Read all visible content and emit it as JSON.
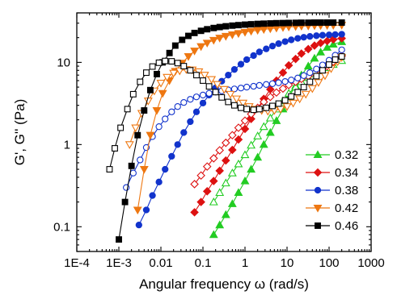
{
  "chart_data": {
    "type": "scatter",
    "xlabel": "Angular frequency ω (rad/s)",
    "ylabel": "G', G'' (Pa)",
    "xscale": "log",
    "yscale": "log",
    "xlim": [
      0.0001,
      1000
    ],
    "ylim": [
      0.05,
      40
    ],
    "xticks": [
      {
        "value": 0.0001,
        "label": "1E-4"
      },
      {
        "value": 0.001,
        "label": "1E-3"
      },
      {
        "value": 0.01,
        "label": "0.01"
      },
      {
        "value": 0.1,
        "label": "0.1"
      },
      {
        "value": 1,
        "label": "1"
      },
      {
        "value": 10,
        "label": "10"
      },
      {
        "value": 100,
        "label": "100"
      },
      {
        "value": 1000,
        "label": "1000"
      }
    ],
    "yticks": [
      {
        "value": 0.1,
        "label": "0.1"
      },
      {
        "value": 1,
        "label": "1"
      },
      {
        "value": 10,
        "label": "10"
      }
    ],
    "legend_position": "bottom-right",
    "grid": false,
    "series": [
      {
        "name": "0.32",
        "color": "#22cc22",
        "marker": "triangle-up",
        "gprime": [
          [
            0.18,
            0.08
          ],
          [
            0.25,
            0.105
          ],
          [
            0.35,
            0.14
          ],
          [
            0.5,
            0.19
          ],
          [
            0.7,
            0.26
          ],
          [
            1.0,
            0.36
          ],
          [
            1.4,
            0.5
          ],
          [
            2.0,
            0.7
          ],
          [
            2.8,
            1.0
          ],
          [
            4.0,
            1.4
          ],
          [
            5.6,
            1.95
          ],
          [
            8.0,
            2.7
          ],
          [
            11,
            3.8
          ],
          [
            16,
            5.2
          ],
          [
            22,
            7.0
          ],
          [
            32,
            9.0
          ],
          [
            45,
            11.2
          ],
          [
            63,
            13.3
          ],
          [
            90,
            15.2
          ],
          [
            126,
            16.6
          ],
          [
            200,
            17.8
          ]
        ],
        "gdoubleprime": [
          [
            0.18,
            0.2
          ],
          [
            0.25,
            0.26
          ],
          [
            0.35,
            0.34
          ],
          [
            0.5,
            0.45
          ],
          [
            0.7,
            0.58
          ],
          [
            1.0,
            0.75
          ],
          [
            1.4,
            0.98
          ],
          [
            2.0,
            1.27
          ],
          [
            2.8,
            1.65
          ],
          [
            4.0,
            2.1
          ],
          [
            5.6,
            2.7
          ],
          [
            8.0,
            3.4
          ],
          [
            11,
            4.2
          ],
          [
            16,
            5.0
          ],
          [
            22,
            5.8
          ],
          [
            32,
            6.5
          ],
          [
            45,
            7.2
          ],
          [
            63,
            7.9
          ],
          [
            90,
            8.6
          ],
          [
            126,
            9.4
          ],
          [
            200,
            10.5
          ]
        ]
      },
      {
        "name": "0.34",
        "color": "#dd1111",
        "marker": "diamond",
        "gprime": [
          [
            0.063,
            0.15
          ],
          [
            0.09,
            0.2
          ],
          [
            0.126,
            0.27
          ],
          [
            0.18,
            0.36
          ],
          [
            0.25,
            0.48
          ],
          [
            0.35,
            0.64
          ],
          [
            0.5,
            0.86
          ],
          [
            0.7,
            1.15
          ],
          [
            1.0,
            1.55
          ],
          [
            1.4,
            2.05
          ],
          [
            2.0,
            2.75
          ],
          [
            2.8,
            3.6
          ],
          [
            4.0,
            4.7
          ],
          [
            5.6,
            6.0
          ],
          [
            8.0,
            7.5
          ],
          [
            11,
            9.2
          ],
          [
            16,
            11.0
          ],
          [
            22,
            12.8
          ],
          [
            32,
            14.5
          ],
          [
            45,
            16.0
          ],
          [
            63,
            17.2
          ],
          [
            90,
            18.2
          ],
          [
            126,
            19.0
          ],
          [
            200,
            19.6
          ]
        ],
        "gdoubleprime": [
          [
            0.063,
            0.33
          ],
          [
            0.09,
            0.42
          ],
          [
            0.126,
            0.54
          ],
          [
            0.18,
            0.68
          ],
          [
            0.25,
            0.85
          ],
          [
            0.35,
            1.05
          ],
          [
            0.5,
            1.3
          ],
          [
            0.7,
            1.6
          ],
          [
            1.0,
            1.95
          ],
          [
            1.4,
            2.35
          ],
          [
            2.0,
            2.8
          ],
          [
            2.8,
            3.3
          ],
          [
            4.0,
            3.8
          ],
          [
            5.6,
            4.3
          ],
          [
            8.0,
            4.8
          ],
          [
            11,
            5.3
          ],
          [
            16,
            5.8
          ],
          [
            22,
            6.3
          ],
          [
            32,
            6.8
          ],
          [
            45,
            7.4
          ],
          [
            63,
            8.1
          ],
          [
            90,
            9.0
          ],
          [
            126,
            10.2
          ],
          [
            200,
            12.0
          ]
        ]
      },
      {
        "name": "0.38",
        "color": "#1133cc",
        "marker": "circle",
        "gprime": [
          [
            0.003,
            0.105
          ],
          [
            0.0045,
            0.16
          ],
          [
            0.0063,
            0.24
          ],
          [
            0.009,
            0.35
          ],
          [
            0.0126,
            0.5
          ],
          [
            0.018,
            0.72
          ],
          [
            0.025,
            1.0
          ],
          [
            0.035,
            1.4
          ],
          [
            0.05,
            1.9
          ],
          [
            0.07,
            2.5
          ],
          [
            0.1,
            3.2
          ],
          [
            0.14,
            4.0
          ],
          [
            0.2,
            4.9
          ],
          [
            0.28,
            5.9
          ],
          [
            0.4,
            7.0
          ],
          [
            0.56,
            8.2
          ],
          [
            0.8,
            9.5
          ],
          [
            1.1,
            10.8
          ],
          [
            1.6,
            12.1
          ],
          [
            2.2,
            13.4
          ],
          [
            3.2,
            14.6
          ],
          [
            4.5,
            15.8
          ],
          [
            6.3,
            16.9
          ],
          [
            9.0,
            17.9
          ],
          [
            12.6,
            18.8
          ],
          [
            18,
            19.6
          ],
          [
            25,
            20.2
          ],
          [
            35,
            20.7
          ],
          [
            50,
            21.1
          ],
          [
            70,
            21.4
          ],
          [
            100,
            21.6
          ],
          [
            140,
            21.8
          ],
          [
            200,
            22.0
          ]
        ],
        "gdoubleprime": [
          [
            0.0015,
            0.3
          ],
          [
            0.0022,
            0.45
          ],
          [
            0.0032,
            0.65
          ],
          [
            0.0045,
            0.92
          ],
          [
            0.0063,
            1.25
          ],
          [
            0.009,
            1.65
          ],
          [
            0.0126,
            2.05
          ],
          [
            0.018,
            2.5
          ],
          [
            0.025,
            2.9
          ],
          [
            0.035,
            3.25
          ],
          [
            0.05,
            3.55
          ],
          [
            0.07,
            3.8
          ],
          [
            0.1,
            4.0
          ],
          [
            0.14,
            4.2
          ],
          [
            0.2,
            4.35
          ],
          [
            0.28,
            4.5
          ],
          [
            0.4,
            4.62
          ],
          [
            0.56,
            4.75
          ],
          [
            0.8,
            4.87
          ],
          [
            1.1,
            5.0
          ],
          [
            1.6,
            5.12
          ],
          [
            2.2,
            5.25
          ],
          [
            3.2,
            5.38
          ],
          [
            4.5,
            5.5
          ],
          [
            6.3,
            5.65
          ],
          [
            9.0,
            5.85
          ],
          [
            12.6,
            6.1
          ],
          [
            18,
            6.45
          ],
          [
            25,
            6.9
          ],
          [
            35,
            7.5
          ],
          [
            50,
            8.3
          ],
          [
            70,
            9.3
          ],
          [
            100,
            10.6
          ],
          [
            140,
            12.2
          ],
          [
            200,
            14.2
          ]
        ]
      },
      {
        "name": "0.42",
        "color": "#ee7711",
        "marker": "triangle-down",
        "gprime": [
          [
            0.0028,
            0.16
          ],
          [
            0.004,
            0.5
          ],
          [
            0.0056,
            1.3
          ],
          [
            0.008,
            2.6
          ],
          [
            0.011,
            4.2
          ],
          [
            0.016,
            6.0
          ],
          [
            0.022,
            7.8
          ],
          [
            0.032,
            9.8
          ],
          [
            0.045,
            11.8
          ],
          [
            0.063,
            13.8
          ],
          [
            0.09,
            15.6
          ],
          [
            0.126,
            17.2
          ],
          [
            0.18,
            18.6
          ],
          [
            0.25,
            19.8
          ],
          [
            0.35,
            20.8
          ],
          [
            0.5,
            21.7
          ],
          [
            0.7,
            22.5
          ],
          [
            1.0,
            23.3
          ],
          [
            1.4,
            24.0
          ],
          [
            2.0,
            24.6
          ],
          [
            2.8,
            25.2
          ],
          [
            4.0,
            25.7
          ],
          [
            5.6,
            26.2
          ],
          [
            8.0,
            26.6
          ],
          [
            11,
            27.0
          ],
          [
            16,
            27.3
          ],
          [
            22,
            27.6
          ],
          [
            32,
            27.8
          ],
          [
            45,
            28.0
          ],
          [
            63,
            28.1
          ],
          [
            90,
            28.2
          ],
          [
            126,
            28.3
          ],
          [
            200,
            28.4
          ]
        ],
        "gdoubleprime": [
          [
            0.0018,
            1.0
          ],
          [
            0.0025,
            1.6
          ],
          [
            0.0035,
            2.4
          ],
          [
            0.005,
            3.4
          ],
          [
            0.007,
            4.5
          ],
          [
            0.01,
            5.6
          ],
          [
            0.014,
            6.6
          ],
          [
            0.02,
            7.4
          ],
          [
            0.028,
            7.9
          ],
          [
            0.04,
            8.2
          ],
          [
            0.056,
            8.1
          ],
          [
            0.08,
            7.7
          ],
          [
            0.11,
            7.0
          ],
          [
            0.16,
            6.2
          ],
          [
            0.22,
            5.4
          ],
          [
            0.32,
            4.7
          ],
          [
            0.45,
            4.1
          ],
          [
            0.63,
            3.6
          ],
          [
            0.9,
            3.2
          ],
          [
            1.26,
            2.9
          ],
          [
            1.8,
            2.7
          ],
          [
            2.5,
            2.6
          ],
          [
            3.5,
            2.55
          ],
          [
            5.0,
            2.6
          ],
          [
            7.0,
            2.7
          ],
          [
            10,
            2.9
          ],
          [
            14,
            3.2
          ],
          [
            20,
            3.6
          ],
          [
            28,
            4.1
          ],
          [
            40,
            4.8
          ],
          [
            56,
            5.7
          ],
          [
            80,
            6.9
          ],
          [
            112,
            8.4
          ],
          [
            160,
            10.2
          ],
          [
            200,
            11.5
          ]
        ]
      },
      {
        "name": "0.46",
        "color": "#000000",
        "marker": "square",
        "gprime": [
          [
            0.001,
            0.07
          ],
          [
            0.0014,
            0.2
          ],
          [
            0.002,
            0.55
          ],
          [
            0.0028,
            1.3
          ],
          [
            0.004,
            2.6
          ],
          [
            0.0056,
            4.6
          ],
          [
            0.008,
            7.2
          ],
          [
            0.011,
            10.0
          ],
          [
            0.016,
            13.0
          ],
          [
            0.022,
            16.0
          ],
          [
            0.032,
            18.8
          ],
          [
            0.045,
            21.0
          ],
          [
            0.063,
            22.8
          ],
          [
            0.09,
            24.2
          ],
          [
            0.126,
            25.3
          ],
          [
            0.18,
            26.2
          ],
          [
            0.25,
            26.9
          ],
          [
            0.35,
            27.5
          ],
          [
            0.5,
            28.0
          ],
          [
            0.7,
            28.4
          ],
          [
            1.0,
            28.8
          ],
          [
            1.4,
            29.1
          ],
          [
            2.0,
            29.4
          ],
          [
            2.8,
            29.6
          ],
          [
            4.0,
            29.8
          ],
          [
            5.6,
            30.0
          ],
          [
            8.0,
            30.1
          ],
          [
            11,
            30.2
          ],
          [
            16,
            30.3
          ],
          [
            22,
            30.4
          ],
          [
            32,
            30.4
          ],
          [
            45,
            30.5
          ],
          [
            63,
            30.5
          ],
          [
            90,
            30.5
          ],
          [
            126,
            30.5
          ],
          [
            200,
            30.5
          ]
        ],
        "gdoubleprime": [
          [
            0.0006,
            0.5
          ],
          [
            0.0008,
            0.9
          ],
          [
            0.0011,
            1.6
          ],
          [
            0.0016,
            2.7
          ],
          [
            0.0022,
            4.1
          ],
          [
            0.0032,
            5.8
          ],
          [
            0.0045,
            7.5
          ],
          [
            0.0063,
            8.9
          ],
          [
            0.009,
            9.9
          ],
          [
            0.0126,
            10.4
          ],
          [
            0.018,
            10.3
          ],
          [
            0.025,
            9.8
          ],
          [
            0.035,
            9.0
          ],
          [
            0.05,
            8.0
          ],
          [
            0.07,
            7.0
          ],
          [
            0.1,
            6.0
          ],
          [
            0.14,
            5.1
          ],
          [
            0.2,
            4.35
          ],
          [
            0.28,
            3.75
          ],
          [
            0.4,
            3.3
          ],
          [
            0.56,
            3.0
          ],
          [
            0.8,
            2.8
          ],
          [
            1.1,
            2.7
          ],
          [
            1.6,
            2.65
          ],
          [
            2.2,
            2.7
          ],
          [
            3.2,
            2.8
          ],
          [
            4.5,
            2.95
          ],
          [
            6.3,
            3.15
          ],
          [
            9.0,
            3.45
          ],
          [
            12.6,
            3.85
          ],
          [
            18,
            4.35
          ],
          [
            25,
            5.0
          ],
          [
            35,
            5.8
          ],
          [
            50,
            6.8
          ],
          [
            70,
            8.0
          ],
          [
            100,
            9.4
          ],
          [
            140,
            10.8
          ],
          [
            200,
            11.8
          ]
        ]
      }
    ]
  }
}
